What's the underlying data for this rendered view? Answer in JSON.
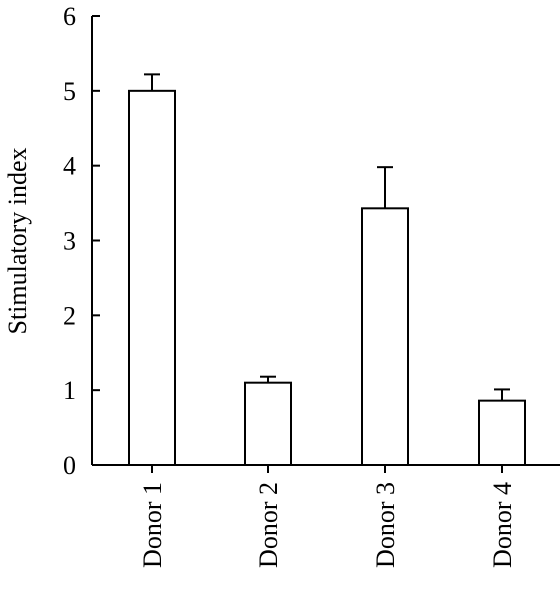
{
  "chart_data": {
    "type": "bar",
    "title": "",
    "xlabel": "",
    "ylabel": "Stimulatory index",
    "ylim": [
      0,
      6
    ],
    "yticks": [
      "0",
      "1",
      "2",
      "3",
      "4",
      "5",
      "6"
    ],
    "categories": [
      "Donor 1",
      "Donor 2",
      "Donor 3",
      "Donor 4"
    ],
    "values": [
      5.0,
      1.1,
      3.43,
      0.86
    ],
    "error_upper": [
      0.22,
      0.08,
      0.55,
      0.15
    ],
    "grid": false,
    "legend": "none",
    "colors": {
      "bar_fill": "#ffffff",
      "stroke": "#000000"
    }
  }
}
